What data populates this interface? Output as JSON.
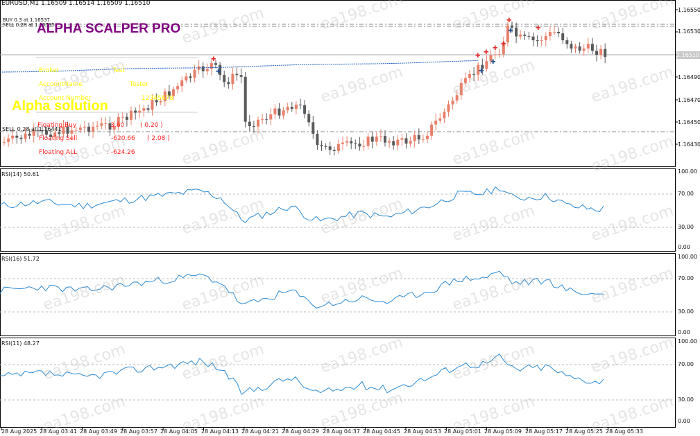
{
  "symbol_header": "EURUSD,M1  1.16509 1.16514 1.16509 1.16510",
  "buy_line_label": "BUY 0.3 at 1.16537",
  "sell_line_label_top": "SELL 0.28 at 1.16535",
  "sell_line_label_low": "SELL 0.28 at 1.16441",
  "ea_title": "ALPHA SCALPER PRO",
  "ea_subtitle": "Alpha solution",
  "info_panel": {
    "broker_label": "Broker",
    "broker_value": "Test",
    "account_label": "AccountName",
    "account_value": "Tester",
    "account_number_label": "Account Number",
    "account_number_value": "12345678",
    "floating_buy_label": "Floating Buy",
    "floating_buy_value": "-3.60",
    "floating_buy_pips": "( 0.20 )",
    "floating_sell_label": "Floating Sell",
    "floating_sell_value": "-620.66",
    "floating_sell_pips": "( 2.08 )",
    "floating_all_label": "Floating ALL",
    "floating_all_value": ": -624.26"
  },
  "price_axis": [
    "1.16550",
    "1.16530",
    "1.16510",
    "1.16490",
    "1.16470",
    "1.16450",
    "1.16430"
  ],
  "current_price": "1.16510",
  "panes": [
    {
      "title": "RSI(14) 50.61",
      "levels": [
        "100.00",
        "70.00",
        "30.00",
        "0.00"
      ]
    },
    {
      "title": "RSI(16) 51.72",
      "levels": [
        "100.00",
        "70.00",
        "30.00",
        "0.00"
      ]
    },
    {
      "title": "RSI(11) 48.27",
      "levels": [
        "100.00",
        "70.00",
        "30.00",
        "0.00"
      ]
    }
  ],
  "time_axis": [
    "28 Aug 2025",
    "28 Aug 03:41",
    "28 Aug 03:49",
    "28 Aug 03:57",
    "28 Aug 04:05",
    "28 Aug 04:13",
    "28 Aug 04:21",
    "28 Aug 04:29",
    "28 Aug 04:37",
    "28 Aug 04:45",
    "28 Aug 04:53",
    "28 Aug 05:01",
    "28 Aug 05:09",
    "28 Aug 05:17",
    "28 Aug 05:25",
    "28 Aug 05:33"
  ],
  "watermark": "ea198.com",
  "colors": {
    "bull": "#e8806a",
    "bear": "#5a5a5a",
    "rsi": "#2a8ad4",
    "ma": "#1f5fbf",
    "buy_arrow": "#e03030",
    "sell_arrow": "#1f4f8f"
  }
}
